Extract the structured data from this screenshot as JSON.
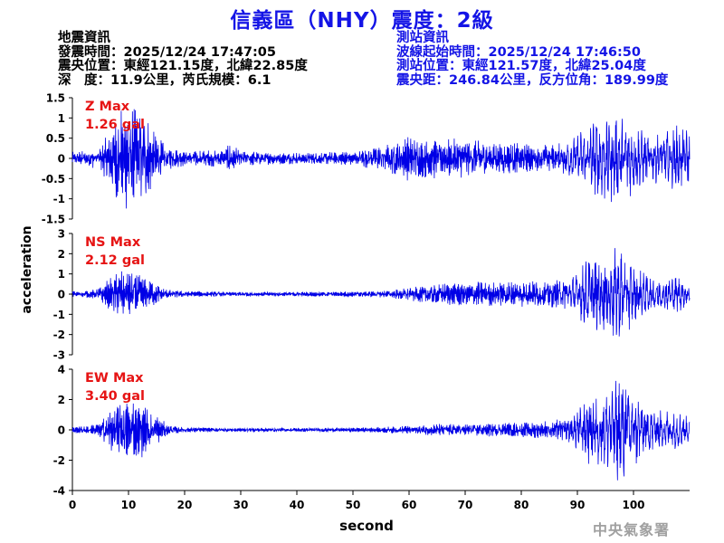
{
  "title": "信義區（NHY）震度：2級",
  "info_left": [
    "地震資訊",
    "發震時間：2025/12/24 17:47:05",
    "震央位置：東經121.15度，北緯22.85度",
    "深　度：11.9公里，芮氏規模：6.1"
  ],
  "info_right": [
    "測站資訊",
    "波線起始時間：2025/12/24 17:46:50",
    "測站位置：東經121.57度，北緯25.04度",
    "震央距：246.84公里，反方位角：189.99度"
  ],
  "watermark": "中央氣象署",
  "colors": {
    "trace": "#0000e6",
    "title": "#1414e6",
    "max_label": "#e61414",
    "axis": "#000000"
  },
  "chart_data": [
    {
      "type": "line",
      "component": "Z",
      "max_label": "Z Max",
      "max_value": "1.26 gal",
      "ylim": [
        -1.5,
        1.5
      ],
      "yticks": [
        -1.5,
        -1,
        -0.5,
        0,
        0.5,
        1,
        1.5
      ],
      "ytick_labels": [
        "-1.5",
        "-1",
        "-0.5",
        "0",
        "0.5",
        "1",
        "1.5"
      ],
      "envelope": {
        "t": [
          0,
          2,
          5,
          7,
          9,
          10,
          11,
          12,
          13,
          15,
          17,
          20,
          27,
          28,
          30,
          35,
          40,
          45,
          50,
          54,
          57,
          60,
          62,
          65,
          70,
          75,
          80,
          85,
          88,
          90,
          92,
          94,
          96,
          98,
          100,
          102,
          105,
          108,
          110
        ],
        "amp": [
          0.14,
          0.16,
          0.25,
          0.75,
          1.1,
          1.15,
          1.26,
          1.1,
          1.0,
          0.5,
          0.25,
          0.17,
          0.2,
          0.32,
          0.17,
          0.14,
          0.13,
          0.14,
          0.17,
          0.26,
          0.35,
          0.5,
          0.42,
          0.45,
          0.42,
          0.35,
          0.33,
          0.32,
          0.38,
          0.55,
          0.75,
          0.95,
          1.0,
          0.9,
          0.8,
          0.55,
          0.55,
          0.75,
          0.6
        ]
      }
    },
    {
      "type": "line",
      "component": "NS",
      "max_label": "NS Max",
      "max_value": "2.12 gal",
      "ylim": [
        -3,
        3
      ],
      "yticks": [
        -3,
        -2,
        -1,
        0,
        1,
        2,
        3
      ],
      "ytick_labels": [
        "-3",
        "-2",
        "-1",
        "0",
        "1",
        "2",
        "3"
      ],
      "envelope": {
        "t": [
          0,
          3,
          5,
          7,
          9,
          11,
          13,
          15,
          17,
          20,
          30,
          40,
          50,
          55,
          60,
          65,
          70,
          75,
          80,
          85,
          88,
          90,
          92,
          94,
          96,
          98,
          100,
          102,
          105,
          108,
          110
        ],
        "amp": [
          0.15,
          0.17,
          0.3,
          0.8,
          1.05,
          1.0,
          0.75,
          0.45,
          0.2,
          0.13,
          0.1,
          0.1,
          0.12,
          0.14,
          0.3,
          0.45,
          0.55,
          0.55,
          0.55,
          0.6,
          0.65,
          0.9,
          1.7,
          1.8,
          2.12,
          2.0,
          1.3,
          0.9,
          0.75,
          0.8,
          0.5
        ]
      }
    },
    {
      "type": "line",
      "component": "EW",
      "max_label": "EW Max",
      "max_value": "3.40 gal",
      "ylim": [
        -4,
        4
      ],
      "yticks": [
        -4,
        -2,
        0,
        2,
        4
      ],
      "ytick_labels": [
        "-4",
        "-2",
        "0",
        "2",
        "4"
      ],
      "envelope": {
        "t": [
          0,
          3,
          5,
          7,
          9,
          11,
          13,
          15,
          17,
          20,
          30,
          40,
          50,
          55,
          60,
          65,
          70,
          75,
          80,
          85,
          88,
          90,
          92,
          94,
          96,
          98,
          100,
          102,
          105,
          108,
          110
        ],
        "amp": [
          0.2,
          0.25,
          0.5,
          1.4,
          1.8,
          1.9,
          1.5,
          0.9,
          0.3,
          0.15,
          0.12,
          0.12,
          0.14,
          0.17,
          0.25,
          0.35,
          0.35,
          0.4,
          0.45,
          0.55,
          0.7,
          1.3,
          2.0,
          2.2,
          2.5,
          3.4,
          2.6,
          1.5,
          1.2,
          1.1,
          0.7
        ]
      }
    }
  ],
  "x_axis": {
    "label": "second",
    "xlim": [
      0,
      110
    ],
    "ticks": [
      0,
      10,
      20,
      30,
      40,
      50,
      60,
      70,
      80,
      90,
      100
    ],
    "tick_labels": [
      "0",
      "10",
      "20",
      "30",
      "40",
      "50",
      "60",
      "70",
      "80",
      "90",
      "100"
    ]
  },
  "y_axis": {
    "label": "acceleration"
  }
}
